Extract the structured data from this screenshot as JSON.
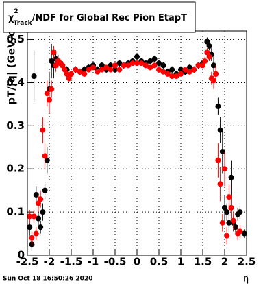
{
  "chart_data": {
    "type": "scatter",
    "title": {
      "symbol": "χ",
      "sup": "2",
      "sub": "Track",
      "rest": "/NDF for Global Rec Pion EtapT"
    },
    "x_label": "η",
    "y_label": "pT/|q| (GeV/c)",
    "footer": "Sun Oct 18 16:50:26 2020",
    "xlim": [
      -2.5,
      2.5
    ],
    "ylim": [
      0,
      0.52
    ],
    "xticks": [
      -2.5,
      -2,
      -1.5,
      -1,
      -0.5,
      0,
      0.5,
      1,
      1.5,
      2,
      2.5
    ],
    "yticks": [
      0,
      0.1,
      0.2,
      0.3,
      0.4,
      0.5
    ],
    "grid": true,
    "series": [
      {
        "color": "#000000",
        "x": [
          -2.45,
          -2.4,
          -2.35,
          -2.3,
          -2.25,
          -2.2,
          -2.15,
          -2.1,
          -2.05,
          -2.0,
          -1.95,
          -1.9,
          -1.85,
          -1.8,
          -1.75,
          -1.7,
          -1.6,
          -1.5,
          -1.4,
          -1.3,
          -1.2,
          -1.1,
          -1.0,
          -0.9,
          -0.8,
          -0.7,
          -0.6,
          -0.5,
          -0.4,
          -0.3,
          -0.2,
          -0.1,
          0,
          0.1,
          0.2,
          0.3,
          0.4,
          0.5,
          0.6,
          0.7,
          0.8,
          0.9,
          1.0,
          1.1,
          1.2,
          1.3,
          1.4,
          1.5,
          1.6,
          1.65,
          1.7,
          1.75,
          1.8,
          1.85,
          1.9,
          1.95,
          2.0,
          2.05,
          2.1,
          2.15,
          2.2,
          2.25,
          2.3,
          2.35,
          2.45
        ],
        "values": [
          0.065,
          0.025,
          0.415,
          0.14,
          0.085,
          0.065,
          0.1,
          0.15,
          0.22,
          0.385,
          0.45,
          0.44,
          0.455,
          0.45,
          0.445,
          0.44,
          0.43,
          0.42,
          0.43,
          0.425,
          0.43,
          0.435,
          0.44,
          0.43,
          0.44,
          0.43,
          0.44,
          0.43,
          0.445,
          0.44,
          0.445,
          0.45,
          0.46,
          0.45,
          0.445,
          0.45,
          0.455,
          0.445,
          0.44,
          0.425,
          0.43,
          0.42,
          0.43,
          0.425,
          0.435,
          0.43,
          0.44,
          0.445,
          0.495,
          0.485,
          0.465,
          0.44,
          0.42,
          0.345,
          0.29,
          0.24,
          0.11,
          0.1,
          0.075,
          0.18,
          0.075,
          0.065,
          0.095,
          0.1,
          0.05
        ],
        "errors": [
          0.02,
          0.015,
          0.06,
          0.02,
          0.015,
          0.015,
          0.02,
          0.02,
          0.03,
          0.04,
          0.04,
          0.03,
          0.02,
          0.015,
          0.01,
          0.01,
          0.008,
          0.008,
          0.008,
          0.008,
          0.008,
          0.008,
          0.008,
          0.008,
          0.008,
          0.008,
          0.008,
          0.008,
          0.008,
          0.008,
          0.008,
          0.008,
          0.008,
          0.008,
          0.008,
          0.008,
          0.008,
          0.008,
          0.008,
          0.008,
          0.008,
          0.008,
          0.008,
          0.008,
          0.008,
          0.008,
          0.008,
          0.008,
          0.01,
          0.01,
          0.015,
          0.02,
          0.02,
          0.02,
          0.03,
          0.05,
          0.03,
          0.02,
          0.02,
          0.04,
          0.02,
          0.015,
          0.015,
          0.015,
          0.01
        ]
      },
      {
        "color": "#ff0000",
        "x": [
          -2.45,
          -2.4,
          -2.35,
          -2.3,
          -2.25,
          -2.2,
          -2.15,
          -2.1,
          -2.05,
          -2.0,
          -1.95,
          -1.9,
          -1.85,
          -1.8,
          -1.75,
          -1.7,
          -1.65,
          -1.6,
          -1.55,
          -1.5,
          -1.4,
          -1.3,
          -1.2,
          -1.1,
          -1.0,
          -0.9,
          -0.8,
          -0.7,
          -0.6,
          -0.5,
          -0.4,
          -0.3,
          -0.2,
          -0.1,
          0,
          0.1,
          0.2,
          0.3,
          0.4,
          0.5,
          0.6,
          0.7,
          0.8,
          0.9,
          1.0,
          1.1,
          1.2,
          1.3,
          1.4,
          1.5,
          1.55,
          1.6,
          1.65,
          1.7,
          1.75,
          1.8,
          1.85,
          1.9,
          1.95,
          2.0,
          2.05,
          2.1,
          2.15,
          2.2,
          2.3,
          2.35
        ],
        "values": [
          0.09,
          0.04,
          0.09,
          0.05,
          0.12,
          0.13,
          0.29,
          0.23,
          0.375,
          0.36,
          0.385,
          0.47,
          0.44,
          0.45,
          0.445,
          0.44,
          0.43,
          0.42,
          0.41,
          0.42,
          0.43,
          0.425,
          0.42,
          0.43,
          0.435,
          0.425,
          0.43,
          0.435,
          0.43,
          0.44,
          0.43,
          0.44,
          0.44,
          0.445,
          0.445,
          0.445,
          0.44,
          0.435,
          0.44,
          0.43,
          0.425,
          0.42,
          0.415,
          0.415,
          0.42,
          0.43,
          0.425,
          0.43,
          0.44,
          0.44,
          0.45,
          0.47,
          0.46,
          0.41,
          0.405,
          0.42,
          0.22,
          0.165,
          0.075,
          0.2,
          0.045,
          0.135,
          0.11,
          0.08,
          0.05,
          0.055
        ],
        "errors": [
          0.015,
          0.015,
          0.015,
          0.015,
          0.02,
          0.02,
          0.03,
          0.03,
          0.03,
          0.03,
          0.02,
          0.015,
          0.015,
          0.01,
          0.01,
          0.01,
          0.008,
          0.008,
          0.008,
          0.006,
          0.006,
          0.006,
          0.006,
          0.006,
          0.006,
          0.006,
          0.006,
          0.006,
          0.006,
          0.006,
          0.006,
          0.006,
          0.006,
          0.006,
          0.006,
          0.006,
          0.006,
          0.006,
          0.006,
          0.006,
          0.006,
          0.006,
          0.006,
          0.006,
          0.006,
          0.006,
          0.006,
          0.006,
          0.006,
          0.006,
          0.01,
          0.01,
          0.01,
          0.015,
          0.02,
          0.02,
          0.04,
          0.04,
          0.02,
          0.04,
          0.02,
          0.03,
          0.03,
          0.02,
          0.015,
          0.015
        ]
      }
    ]
  }
}
